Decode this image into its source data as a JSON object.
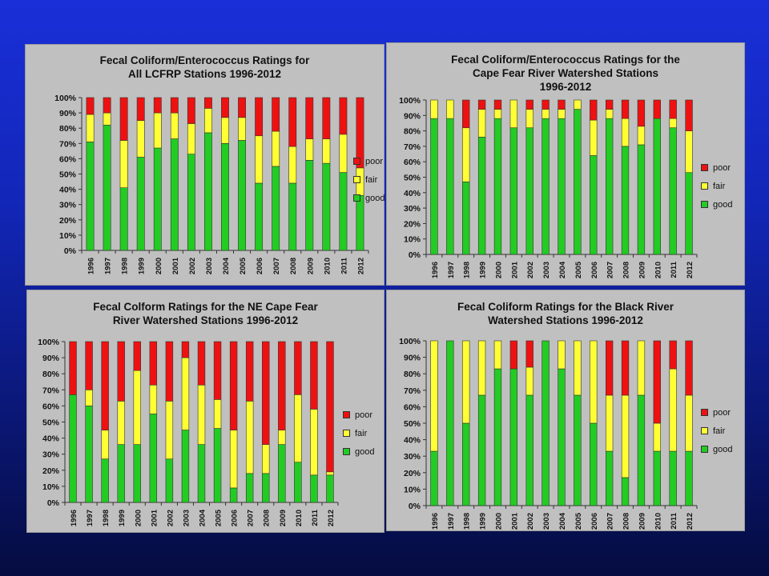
{
  "colors": {
    "good": "#22cc22",
    "fair": "#ffff33",
    "poor": "#ee1111"
  },
  "legend": [
    "poor",
    "fair",
    "good"
  ],
  "chart_data": [
    {
      "type": "bar",
      "stacked": true,
      "title_lines": [
        "Fecal Coliform/Enterococcus Ratings for",
        "All LCFRP Stations 1996-2012"
      ],
      "categories": [
        "1996",
        "1997",
        "1998",
        "1999",
        "2000",
        "2001",
        "2002",
        "2003",
        "2004",
        "2005",
        "2006",
        "2007",
        "2008",
        "2009",
        "2010",
        "2011",
        "2012"
      ],
      "series": [
        {
          "name": "good",
          "values": [
            71,
            82,
            41,
            61,
            67,
            73,
            63,
            77,
            70,
            72,
            44,
            55,
            44,
            59,
            57,
            51,
            36
          ]
        },
        {
          "name": "fair",
          "values": [
            18,
            8,
            31,
            24,
            23,
            17,
            20,
            16,
            17,
            15,
            31,
            23,
            24,
            14,
            16,
            25,
            18
          ]
        },
        {
          "name": "poor",
          "values": [
            11,
            10,
            28,
            15,
            10,
            10,
            17,
            7,
            13,
            13,
            25,
            22,
            32,
            27,
            27,
            24,
            46
          ]
        }
      ],
      "ylim": [
        0,
        100
      ],
      "yticks": [
        "0%",
        "10%",
        "20%",
        "30%",
        "40%",
        "50%",
        "60%",
        "70%",
        "80%",
        "90%",
        "100%"
      ],
      "legend_position": "right"
    },
    {
      "type": "bar",
      "stacked": true,
      "title_lines": [
        "Fecal Coliform/Enterococcus Ratings for the",
        "Cape Fear River Watershed Stations",
        "1996-2012"
      ],
      "categories": [
        "1996",
        "1997",
        "1998",
        "1999",
        "2000",
        "2001",
        "2002",
        "2003",
        "2004",
        "2005",
        "2006",
        "2007",
        "2008",
        "2009",
        "2010",
        "2011",
        "2012"
      ],
      "series": [
        {
          "name": "good",
          "values": [
            88,
            88,
            47,
            76,
            88,
            82,
            82,
            88,
            88,
            94,
            64,
            88,
            70,
            71,
            88,
            82,
            53
          ]
        },
        {
          "name": "fair",
          "values": [
            12,
            12,
            35,
            18,
            6,
            18,
            12,
            6,
            6,
            6,
            23,
            6,
            18,
            12,
            0,
            6,
            27
          ]
        },
        {
          "name": "poor",
          "values": [
            0,
            0,
            18,
            6,
            6,
            0,
            6,
            6,
            6,
            0,
            13,
            6,
            12,
            17,
            12,
            12,
            20
          ]
        }
      ],
      "ylim": [
        0,
        100
      ],
      "yticks": [
        "0%",
        "10%",
        "20%",
        "30%",
        "40%",
        "50%",
        "60%",
        "70%",
        "80%",
        "90%",
        "100%"
      ],
      "legend_position": "right"
    },
    {
      "type": "bar",
      "stacked": true,
      "title_lines": [
        "Fecal Colform Ratings for the NE Cape Fear",
        "River Watershed Stations 1996-2012"
      ],
      "categories": [
        "1996",
        "1997",
        "1998",
        "1999",
        "2000",
        "2001",
        "2002",
        "2003",
        "2004",
        "2005",
        "2006",
        "2007",
        "2008",
        "2009",
        "2010",
        "2011",
        "2012"
      ],
      "series": [
        {
          "name": "good",
          "values": [
            67,
            60,
            27,
            36,
            36,
            55,
            27,
            45,
            36,
            46,
            9,
            18,
            18,
            36,
            25,
            17,
            17
          ]
        },
        {
          "name": "fair",
          "values": [
            0,
            10,
            18,
            27,
            46,
            18,
            36,
            45,
            37,
            18,
            36,
            45,
            18,
            9,
            42,
            41,
            2
          ]
        },
        {
          "name": "poor",
          "values": [
            33,
            30,
            55,
            37,
            18,
            27,
            37,
            10,
            27,
            36,
            55,
            37,
            64,
            55,
            33,
            42,
            81
          ]
        }
      ],
      "ylim": [
        0,
        100
      ],
      "yticks": [
        "0%",
        "10%",
        "20%",
        "30%",
        "40%",
        "50%",
        "60%",
        "70%",
        "80%",
        "90%",
        "100%"
      ],
      "legend_position": "right"
    },
    {
      "type": "bar",
      "stacked": true,
      "title_lines": [
        "Fecal Coliform Ratings for the Black River",
        "Watershed Stations 1996-2012"
      ],
      "categories": [
        "1996",
        "1997",
        "1998",
        "1999",
        "2000",
        "2001",
        "2002",
        "2003",
        "2004",
        "2005",
        "2006",
        "2007",
        "2008",
        "2009",
        "2010",
        "2011",
        "2012"
      ],
      "series": [
        {
          "name": "good",
          "values": [
            33,
            100,
            50,
            67,
            83,
            83,
            67,
            100,
            83,
            67,
            50,
            33,
            17,
            67,
            33,
            33,
            33
          ]
        },
        {
          "name": "fair",
          "values": [
            67,
            0,
            50,
            33,
            17,
            0,
            17,
            0,
            17,
            33,
            50,
            34,
            50,
            33,
            17,
            50,
            34
          ]
        },
        {
          "name": "poor",
          "values": [
            0,
            0,
            0,
            0,
            0,
            17,
            16,
            0,
            0,
            0,
            0,
            33,
            33,
            0,
            50,
            17,
            33
          ]
        }
      ],
      "ylim": [
        0,
        100
      ],
      "yticks": [
        "0%",
        "10%",
        "20%",
        "30%",
        "40%",
        "50%",
        "60%",
        "70%",
        "80%",
        "90%",
        "100%"
      ],
      "legend_position": "right"
    }
  ]
}
